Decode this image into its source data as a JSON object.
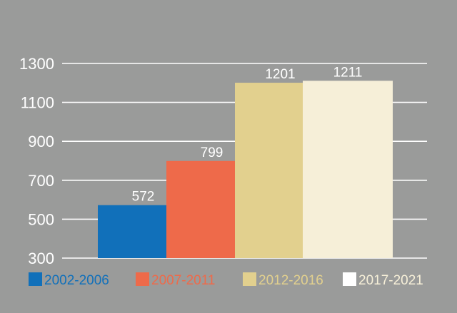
{
  "chart_data": {
    "type": "bar",
    "title": "",
    "xlabel": "",
    "ylabel": "",
    "ylim": [
      300,
      1300
    ],
    "yticks": [
      300,
      500,
      700,
      900,
      1100,
      1300
    ],
    "grid": true,
    "legend_position": "bottom",
    "series": [
      {
        "name": "2002-2006",
        "value": 572,
        "color": "#1170ba",
        "legend_color": "#1170ba"
      },
      {
        "name": "2007-2011",
        "value": 799,
        "color": "#ee6a4a",
        "legend_color": "#ee6a4a"
      },
      {
        "name": "2012-2016",
        "value": 1201,
        "color": "#e2d08e",
        "legend_color": "#e2d08e"
      },
      {
        "name": "2017-2021",
        "value": 1211,
        "color": "#f6efd8",
        "legend_color": "#ffffff"
      }
    ]
  }
}
